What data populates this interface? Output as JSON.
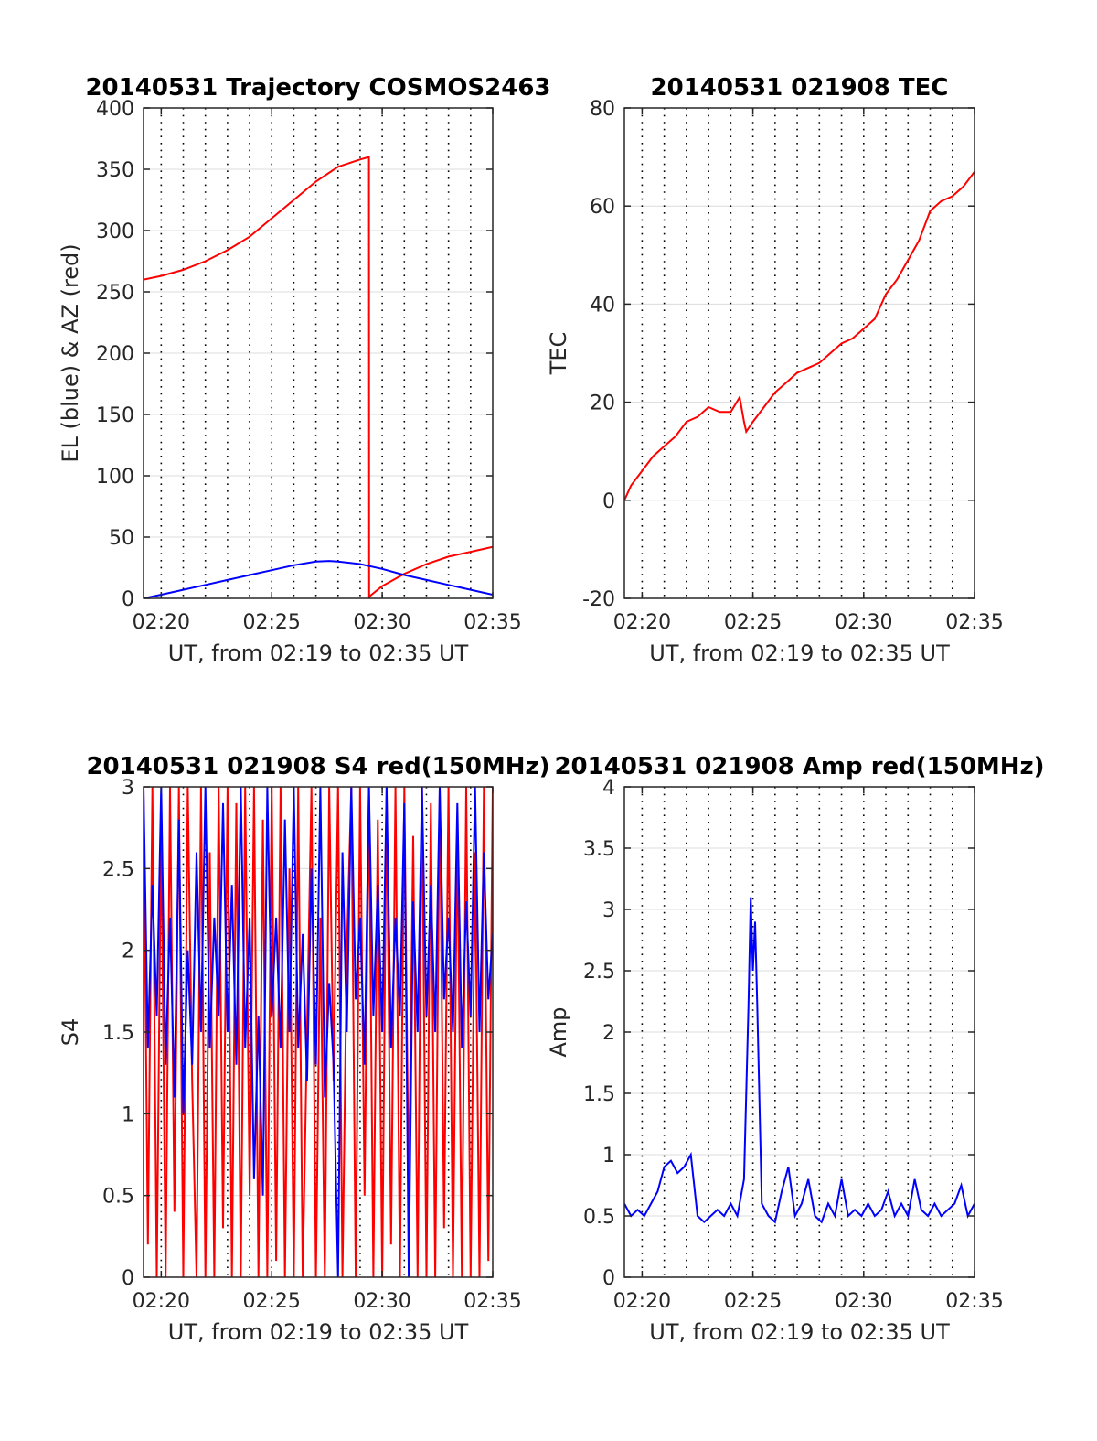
{
  "chart_data": [
    {
      "type": "line",
      "title": "20140531 Trajectory COSMOS2463",
      "xlabel": "UT, from 02:19 to 02:35 UT",
      "ylabel": "EL (blue) & AZ (red)",
      "xlim": [
        19.2,
        35.0
      ],
      "ylim": [
        0,
        400
      ],
      "xticks": [
        20,
        25,
        30,
        35
      ],
      "xtick_labels": [
        "02:20",
        "02:25",
        "02:30",
        "02:35"
      ],
      "yticks": [
        0,
        50,
        100,
        150,
        200,
        250,
        300,
        350,
        400
      ],
      "ytick_labels": [
        "0",
        "50",
        "100",
        "150",
        "200",
        "250",
        "300",
        "350",
        "400"
      ],
      "grid": {
        "horizontal": "solid",
        "vertical_dotted_every_minutes": 1
      },
      "series": [
        {
          "color": "#ff0000",
          "x": [
            19.2,
            20.0,
            21.0,
            22.0,
            23.0,
            24.0,
            25.0,
            26.0,
            27.0,
            28.0,
            29.0,
            29.4,
            29.41,
            29.45,
            30.0,
            31.0,
            32.0,
            33.0,
            34.0,
            35.0
          ],
          "y": [
            260,
            263,
            268,
            275,
            284,
            295,
            310,
            325,
            340,
            352,
            358,
            360,
            0,
            2,
            10,
            20,
            28,
            34,
            38,
            42
          ]
        },
        {
          "color": "#0000ff",
          "x": [
            19.2,
            20.0,
            21.0,
            22.0,
            23.0,
            24.0,
            25.0,
            26.0,
            27.0,
            27.6,
            28.0,
            29.0,
            30.0,
            31.0,
            32.0,
            33.0,
            34.0,
            35.0
          ],
          "y": [
            0,
            3,
            7,
            11,
            15,
            19,
            23,
            27,
            30,
            30.5,
            30,
            28,
            24,
            19,
            15,
            11,
            7,
            3
          ]
        }
      ]
    },
    {
      "type": "line",
      "title": "20140531 021908 TEC",
      "xlabel": "UT, from 02:19 to 02:35 UT",
      "ylabel": "TEC",
      "xlim": [
        19.2,
        35.0
      ],
      "ylim": [
        -20,
        80
      ],
      "xticks": [
        20,
        25,
        30,
        35
      ],
      "xtick_labels": [
        "02:20",
        "02:25",
        "02:30",
        "02:35"
      ],
      "yticks": [
        -20,
        0,
        20,
        40,
        60,
        80
      ],
      "ytick_labels": [
        "-20",
        "0",
        "20",
        "40",
        "60",
        "80"
      ],
      "grid": {
        "horizontal": "solid",
        "vertical_dotted_every_minutes": 1
      },
      "series": [
        {
          "color": "#ff0000",
          "x": [
            19.2,
            19.5,
            20.0,
            20.5,
            21.0,
            21.5,
            22.0,
            22.5,
            23.0,
            23.5,
            24.0,
            24.4,
            24.6,
            24.7,
            25.0,
            25.5,
            26.0,
            26.5,
            27.0,
            27.5,
            28.0,
            28.5,
            29.0,
            29.5,
            30.0,
            30.5,
            31.0,
            31.5,
            32.0,
            32.5,
            33.0,
            33.5,
            34.0,
            34.5,
            35.0
          ],
          "y": [
            0,
            3,
            6,
            9,
            11,
            13,
            16,
            17,
            19,
            18,
            18,
            21,
            16,
            14,
            16,
            19,
            22,
            24,
            26,
            27,
            28,
            30,
            32,
            33,
            35,
            37,
            42,
            45,
            49,
            53,
            59,
            61,
            62,
            64,
            67
          ]
        }
      ]
    },
    {
      "type": "line",
      "title": "20140531 021908 S4 red(150MHz)",
      "xlabel": "UT, from 02:19 to 02:35 UT",
      "ylabel": "S4",
      "xlim": [
        19.2,
        35.0
      ],
      "ylim": [
        0,
        3
      ],
      "xticks": [
        20,
        25,
        30,
        35
      ],
      "xtick_labels": [
        "02:20",
        "02:25",
        "02:30",
        "02:35"
      ],
      "yticks": [
        0,
        0.5,
        1,
        1.5,
        2,
        2.5,
        3
      ],
      "ytick_labels": [
        "0",
        "0.5",
        "1",
        "1.5",
        "2",
        "2.5",
        "3"
      ],
      "grid": {
        "horizontal": "solid",
        "vertical_dotted_every_minutes": 1
      },
      "series": [
        {
          "color": "#ff0000",
          "x": [
            19.2,
            19.4,
            19.6,
            19.8,
            20.0,
            20.2,
            20.4,
            20.6,
            20.8,
            21.0,
            21.2,
            21.4,
            21.6,
            21.8,
            22.0,
            22.2,
            22.4,
            22.6,
            22.8,
            23.0,
            23.2,
            23.4,
            23.6,
            23.8,
            24.0,
            24.2,
            24.4,
            24.6,
            24.8,
            25.0,
            25.2,
            25.4,
            25.6,
            25.8,
            26.0,
            26.2,
            26.4,
            26.6,
            26.8,
            27.0,
            27.2,
            27.4,
            27.6,
            27.8,
            28.0,
            28.2,
            28.4,
            28.6,
            28.8,
            29.0,
            29.2,
            29.4,
            29.6,
            29.8,
            30.0,
            30.2,
            30.4,
            30.6,
            30.8,
            31.0,
            31.2,
            31.4,
            31.6,
            31.8,
            32.0,
            32.2,
            32.4,
            32.6,
            32.8,
            33.0,
            33.2,
            33.4,
            33.6,
            33.8,
            34.0,
            34.2,
            34.4,
            34.6,
            34.8,
            35.0
          ],
          "y": [
            3,
            0.2,
            3,
            0,
            2.8,
            0,
            3,
            0.4,
            3,
            0,
            3,
            1.2,
            0,
            3,
            0,
            2.6,
            0,
            3,
            0.3,
            3,
            0,
            2.9,
            0,
            3,
            0.5,
            3,
            0,
            2.8,
            0,
            3,
            0.1,
            3,
            0,
            2.5,
            0,
            3,
            0,
            1.5,
            3,
            0,
            2.2,
            0,
            3,
            1.2,
            3,
            0,
            2.0,
            3,
            0,
            3,
            0.5,
            3,
            0,
            2.8,
            0,
            3,
            0.2,
            3,
            0,
            3,
            0.5,
            2.7,
            0,
            3,
            0,
            2.9,
            0,
            3,
            0.3,
            3,
            0,
            2.8,
            0,
            3,
            0,
            2.6,
            0,
            3,
            0.1,
            3
          ]
        },
        {
          "color": "#0000ff",
          "x": [
            19.2,
            19.4,
            19.6,
            19.8,
            20.0,
            20.2,
            20.4,
            20.6,
            20.8,
            21.0,
            21.2,
            21.4,
            21.6,
            21.8,
            22.0,
            22.2,
            22.4,
            22.6,
            22.8,
            23.0,
            23.2,
            23.4,
            23.6,
            23.8,
            24.0,
            24.2,
            24.4,
            24.6,
            24.8,
            25.0,
            25.2,
            25.4,
            25.6,
            25.8,
            26.0,
            26.2,
            26.4,
            26.6,
            26.8,
            27.0,
            27.2,
            27.4,
            27.6,
            27.8,
            28.0,
            28.2,
            28.4,
            28.6,
            28.8,
            29.0,
            29.2,
            29.4,
            29.6,
            29.8,
            30.0,
            30.2,
            30.4,
            30.6,
            30.8,
            31.0,
            31.2,
            31.4,
            31.6,
            31.8,
            32.0,
            32.2,
            32.4,
            32.6,
            32.8,
            33.0,
            33.2,
            33.4,
            33.6,
            33.8,
            34.0,
            34.2,
            34.4,
            34.6,
            34.8,
            35.0
          ],
          "y": [
            3,
            1.4,
            2.4,
            1.6,
            3,
            1.3,
            2.2,
            1.1,
            2.8,
            1.0,
            2.0,
            1.3,
            2.6,
            1.5,
            3,
            1.4,
            2.2,
            1.6,
            2.9,
            1.5,
            2.4,
            1.3,
            3,
            1.4,
            2.2,
            0.6,
            1.6,
            0.5,
            3,
            1.6,
            2.2,
            1.4,
            2.8,
            1.5,
            3,
            1.4,
            2.1,
            1.2,
            2.5,
            1.3,
            3,
            1.1,
            1.8,
            1.3,
            0,
            2.6,
            1.5,
            3,
            1.7,
            2.2,
            1.3,
            3,
            1.6,
            2.4,
            1.5,
            3,
            1.4,
            2.2,
            1.6,
            2.9,
            0,
            2.3,
            1.5,
            3,
            1.6,
            2.4,
            1.5,
            3,
            1.7,
            2.2,
            1.5,
            2.9,
            1.4,
            2.3,
            1.6,
            3,
            1.5,
            2.6,
            1.7,
            2.1
          ]
        }
      ]
    },
    {
      "type": "line",
      "title": "20140531 021908 Amp red(150MHz)",
      "xlabel": "UT, from 02:19 to 02:35 UT",
      "ylabel": "Amp",
      "xlim": [
        19.2,
        35.0
      ],
      "ylim": [
        0,
        4
      ],
      "xticks": [
        20,
        25,
        30,
        35
      ],
      "xtick_labels": [
        "02:20",
        "02:25",
        "02:30",
        "02:35"
      ],
      "yticks": [
        0,
        0.5,
        1,
        1.5,
        2,
        2.5,
        3,
        3.5,
        4
      ],
      "ytick_labels": [
        "0",
        "0.5",
        "1",
        "1.5",
        "2",
        "2.5",
        "3",
        "3.5",
        "4"
      ],
      "grid": {
        "horizontal": "solid",
        "vertical_dotted_every_minutes": 1
      },
      "series": [
        {
          "color": "#0000ff",
          "x": [
            19.2,
            19.5,
            19.8,
            20.1,
            20.4,
            20.7,
            21.0,
            21.3,
            21.6,
            21.9,
            22.2,
            22.5,
            22.8,
            23.1,
            23.4,
            23.7,
            24.0,
            24.3,
            24.6,
            24.8,
            24.9,
            25.0,
            25.1,
            25.2,
            25.4,
            25.7,
            26.0,
            26.3,
            26.6,
            26.9,
            27.2,
            27.5,
            27.8,
            28.1,
            28.4,
            28.7,
            29.0,
            29.3,
            29.6,
            29.9,
            30.2,
            30.5,
            30.8,
            31.1,
            31.4,
            31.7,
            32.0,
            32.3,
            32.6,
            32.9,
            33.2,
            33.5,
            33.8,
            34.1,
            34.4,
            34.7,
            35.0
          ],
          "y": [
            0.6,
            0.5,
            0.55,
            0.5,
            0.6,
            0.7,
            0.9,
            0.95,
            0.85,
            0.9,
            1.0,
            0.5,
            0.45,
            0.5,
            0.55,
            0.5,
            0.6,
            0.5,
            0.8,
            2.2,
            3.1,
            2.5,
            2.9,
            2.2,
            0.6,
            0.5,
            0.45,
            0.7,
            0.9,
            0.5,
            0.6,
            0.8,
            0.5,
            0.45,
            0.6,
            0.5,
            0.8,
            0.5,
            0.55,
            0.5,
            0.6,
            0.5,
            0.55,
            0.7,
            0.5,
            0.6,
            0.5,
            0.8,
            0.55,
            0.5,
            0.6,
            0.5,
            0.55,
            0.6,
            0.75,
            0.5,
            0.6
          ]
        }
      ]
    }
  ]
}
